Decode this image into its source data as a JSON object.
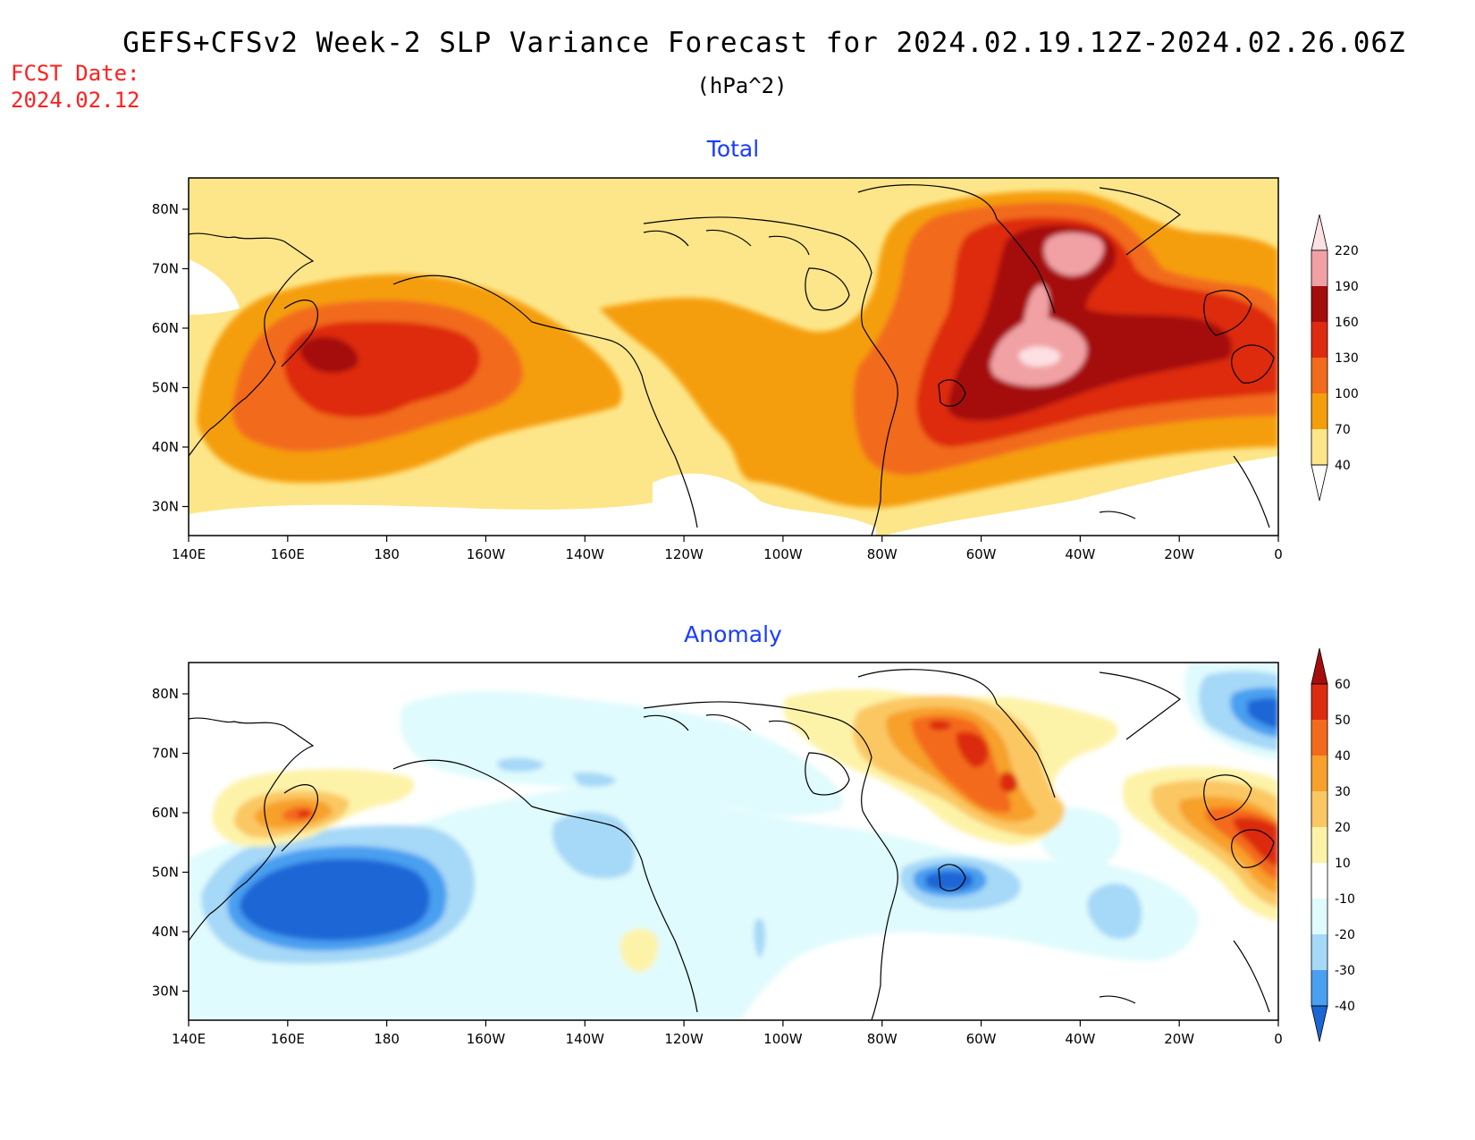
{
  "title": "GEFS+CFSv2 Week-2 SLP Variance Forecast for 2024.02.19.12Z-2024.02.26.06Z",
  "units": "(hPa^2)",
  "fcst_label": "FCST Date:",
  "fcst_date": "2024.02.12",
  "x_ticks": [
    "140E",
    "160E",
    "180",
    "160W",
    "140W",
    "120W",
    "100W",
    "80W",
    "60W",
    "40W",
    "20W",
    "0"
  ],
  "y_ticks": [
    "80N",
    "70N",
    "60N",
    "50N",
    "40N",
    "30N"
  ],
  "panels": [
    {
      "title": "Total",
      "legend_levels": [
        "220",
        "190",
        "160",
        "130",
        "100",
        "70",
        "40"
      ],
      "colors": [
        "#fde68a",
        "#f59e0b",
        "#f26a1b",
        "#de2a10",
        "#a50d0d",
        "#f1a1a4",
        "#fde0e2"
      ]
    },
    {
      "title": "Anomaly",
      "legend_levels": [
        "60",
        "50",
        "40",
        "30",
        "20",
        "10",
        "-10",
        "-20",
        "-30",
        "-40"
      ],
      "pos_colors": [
        "#fdf3a8",
        "#fbc764",
        "#f7a02c",
        "#f46a1c",
        "#db2c10",
        "#a50d0d"
      ],
      "neg_colors": [
        "#e0fbfd",
        "#a6d8f7",
        "#4a9ff0",
        "#1b66d6"
      ]
    }
  ]
}
